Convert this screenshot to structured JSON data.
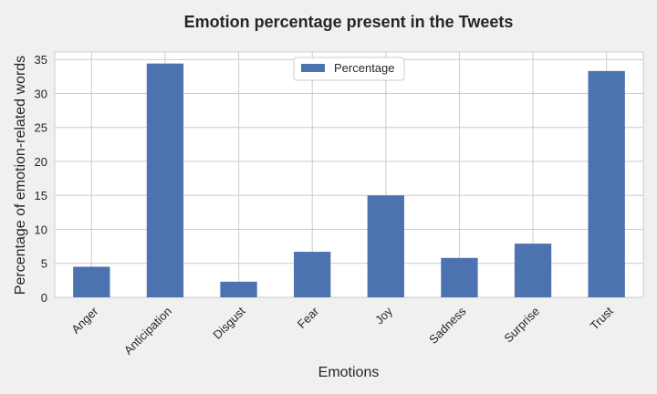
{
  "chart_data": {
    "type": "bar",
    "title": "Emotion percentage present in the Tweets",
    "xlabel": "Emotions",
    "ylabel": "Percentage of emotion-related words",
    "categories": [
      "Anger",
      "Anticipation",
      "Disgust",
      "Fear",
      "Joy",
      "Sadness",
      "Surprise",
      "Trust"
    ],
    "series": [
      {
        "name": "Percentage",
        "values": [
          4.5,
          34.4,
          2.3,
          6.7,
          15.0,
          5.8,
          7.9,
          33.3
        ]
      }
    ],
    "ylim": [
      0,
      36.1
    ],
    "yticks": [
      0,
      5,
      10,
      15,
      20,
      25,
      30,
      35
    ],
    "grid": true,
    "legend_position": "top-center",
    "colors": {
      "bar": "#4c72b0",
      "plot_background": "#ffffff",
      "page_background": "#f0f0f0",
      "grid": "#cccccc"
    }
  }
}
